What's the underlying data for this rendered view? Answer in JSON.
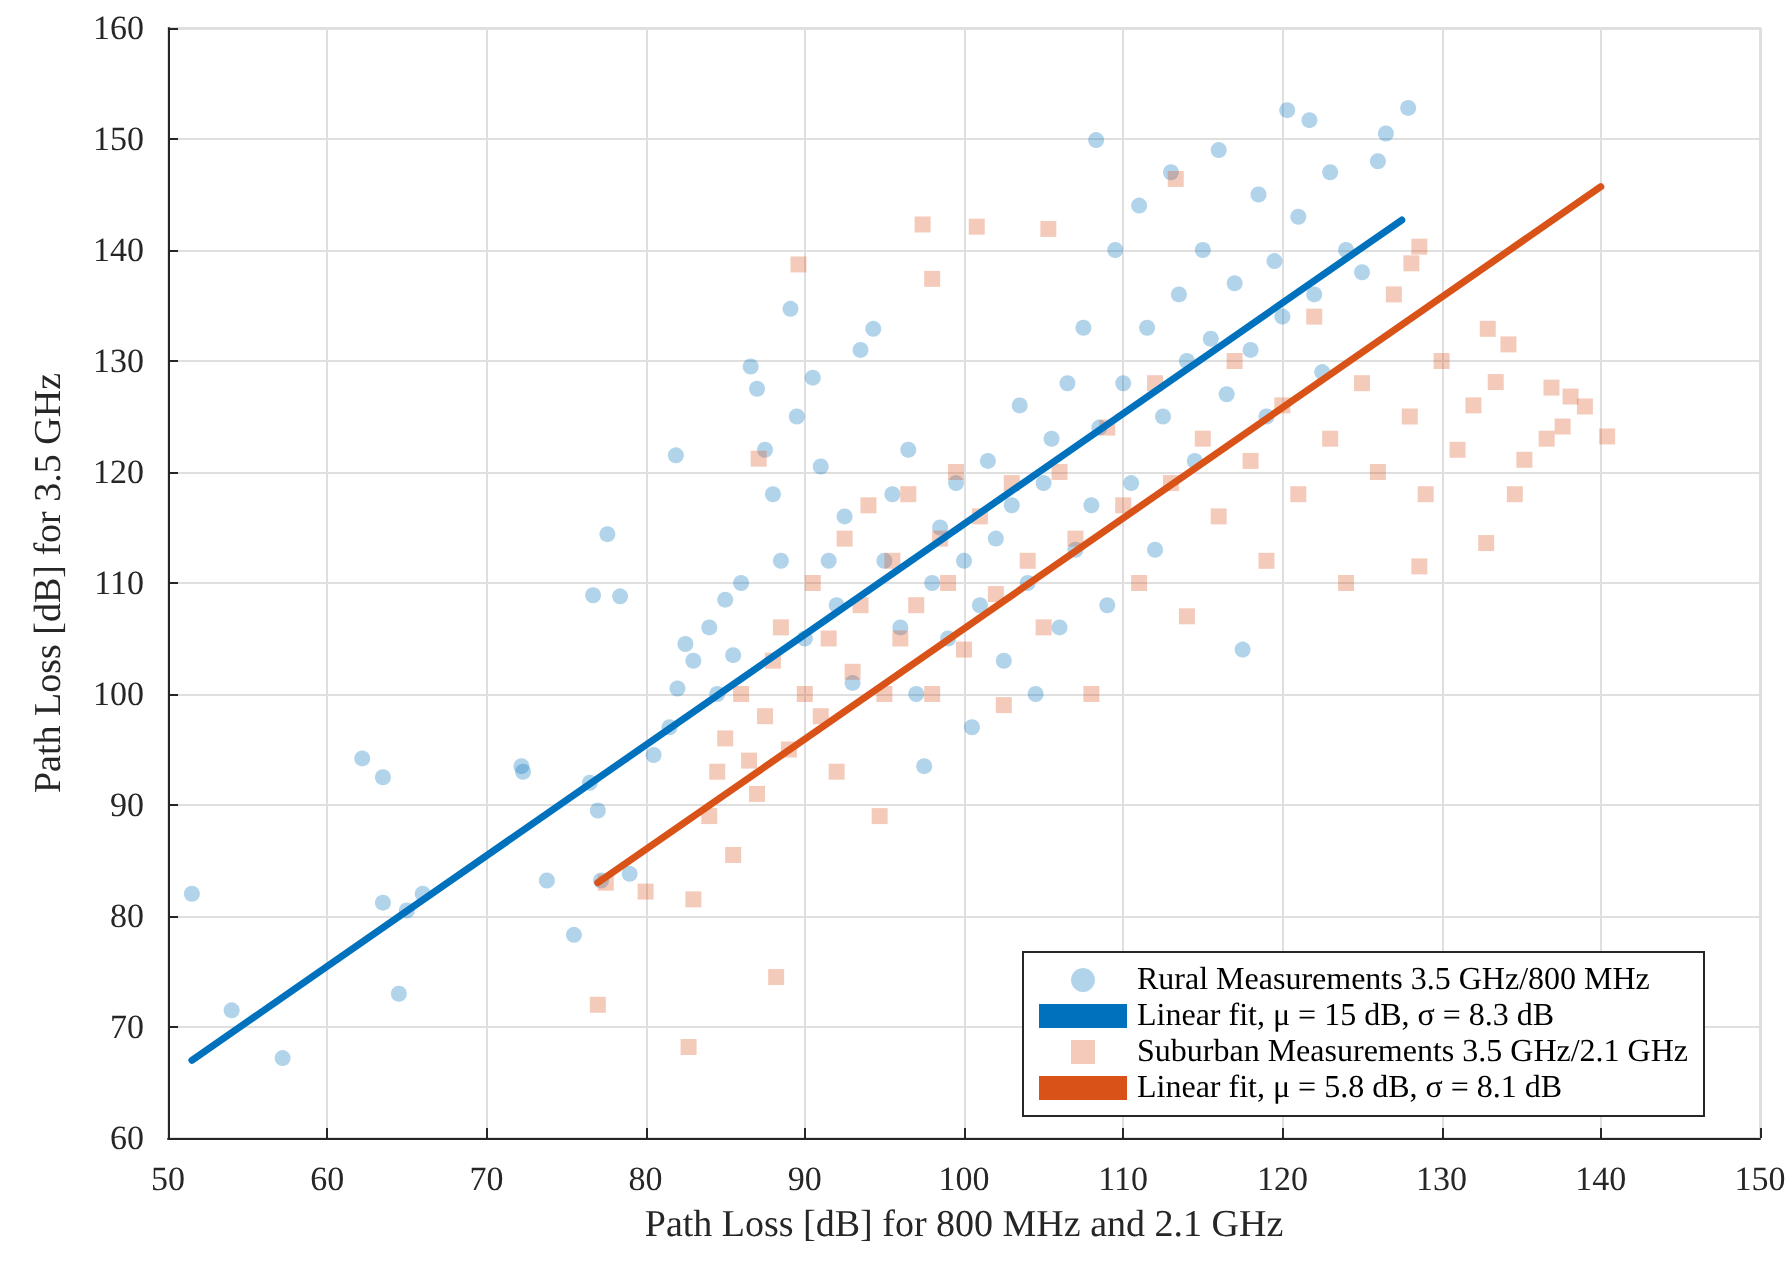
{
  "chart_data": {
    "type": "scatter",
    "xlabel": "Path Loss [dB] for 800 MHz and 2.1 GHz",
    "ylabel": "Path Loss [dB] for 3.5 GHz",
    "xlim": [
      50,
      150
    ],
    "xticks": [
      50,
      60,
      70,
      80,
      90,
      100,
      110,
      120,
      130,
      140,
      150
    ],
    "ylim": [
      60,
      160
    ],
    "yticks": [
      60,
      70,
      80,
      90,
      100,
      110,
      120,
      130,
      140,
      150,
      160
    ],
    "grid": true,
    "legend": "bottom right",
    "series": [
      {
        "name": "Rural Measurements 3.5 GHz/800 MHz",
        "marker": "circle",
        "color": "#0072bd",
        "x": [
          51.5,
          54,
          57.2,
          62.2,
          63.5,
          63.5,
          64.5,
          65,
          66,
          72.2,
          72.3,
          73.8,
          75.5,
          76.5,
          76.7,
          77,
          77.2,
          77.6,
          78.4,
          79,
          80.5,
          81.5,
          81.9,
          82,
          82.5,
          83,
          84,
          84.5,
          85,
          85.5,
          86,
          86.6,
          87,
          87.5,
          88,
          88.5,
          89.1,
          89.5,
          90,
          90.5,
          91,
          91.5,
          92,
          92.5,
          93,
          93.5,
          94.3,
          95,
          95.5,
          96,
          96.5,
          97,
          97.5,
          98,
          98.5,
          99,
          99.5,
          100,
          100.5,
          101,
          101.5,
          102,
          102.5,
          103,
          103.5,
          104,
          104.5,
          105,
          105.5,
          106,
          106.5,
          107,
          107.5,
          108,
          108.3,
          108.5,
          109,
          109.5,
          110,
          110.5,
          111,
          111.5,
          112,
          112.5,
          113,
          113.5,
          114,
          114.5,
          115,
          115.5,
          116,
          116.5,
          117,
          117.5,
          118,
          118.5,
          119,
          119.5,
          120,
          120.3,
          121,
          121.7,
          122,
          122.5,
          123,
          124,
          125,
          126,
          126.5,
          127.9
        ],
        "values": [
          82,
          71.5,
          67.2,
          94.2,
          92.5,
          81.2,
          73,
          80.5,
          82,
          93.5,
          93,
          83.2,
          78.3,
          92,
          108.9,
          89.5,
          83.2,
          114.4,
          108.8,
          83.8,
          94.5,
          97,
          121.5,
          100.5,
          104.5,
          103,
          106,
          100,
          108.5,
          103.5,
          110,
          129.5,
          127.5,
          122,
          118,
          112,
          134.7,
          125,
          105,
          128.5,
          120.5,
          112,
          108,
          116,
          101,
          131,
          132.9,
          112,
          118,
          106,
          122,
          100,
          93.5,
          110,
          115,
          105,
          119,
          112,
          97,
          108,
          121,
          114,
          103,
          117,
          126,
          110,
          100,
          119,
          123,
          106,
          128,
          113,
          133,
          117,
          149.9,
          124,
          108,
          140,
          128,
          119,
          144,
          133,
          113,
          125,
          147,
          136,
          130,
          121,
          140,
          132,
          149,
          127,
          137,
          104,
          131,
          145,
          125,
          139,
          134,
          152.6,
          143,
          151.7,
          136,
          129,
          147,
          140,
          138,
          148,
          150.5,
          152.8
        ]
      },
      {
        "name": "Linear fit, μ = 15 dB, σ = 8.3 dB",
        "type": "line",
        "marker": "none",
        "color": "#0072bd",
        "x": [
          51.5,
          127.5
        ],
        "values": [
          67,
          142.7
        ]
      },
      {
        "name": "Suburban Measurements 3.5 GHz/2.1 GHz",
        "marker": "square",
        "color": "#d95319",
        "x": [
          77,
          77.5,
          80,
          82.7,
          83,
          84,
          84.5,
          85,
          85.5,
          86,
          86.5,
          87,
          87.1,
          87.5,
          88,
          88.2,
          88.5,
          89,
          89.6,
          90,
          90.5,
          91,
          91.5,
          92,
          92.5,
          93,
          93.5,
          94,
          94.7,
          95,
          95.5,
          96,
          96.5,
          97,
          97.4,
          98,
          98,
          98.5,
          99,
          99.5,
          100,
          100.8,
          101,
          102,
          102.5,
          103,
          104,
          105,
          105.3,
          106,
          107,
          108,
          109,
          110,
          111,
          112,
          113,
          113.3,
          114,
          115,
          116,
          117,
          118,
          119,
          120,
          121,
          122,
          123,
          124,
          125,
          126,
          127,
          128,
          128.1,
          128.6,
          128.6,
          129,
          130,
          131,
          132,
          132.9,
          132.8,
          133.4,
          134.2,
          134.6,
          135.2,
          136.6,
          136.9,
          137.6,
          138.1,
          139,
          140.4
        ],
        "values": [
          72,
          83,
          82.2,
          68.2,
          81.5,
          89,
          93,
          96,
          85.5,
          100,
          94,
          91,
          121.2,
          98,
          103,
          74.5,
          106,
          95,
          138.7,
          100,
          110,
          98,
          105,
          93,
          114,
          102,
          108,
          117,
          89,
          100,
          112,
          105,
          118,
          108,
          142.3,
          137.4,
          100,
          114,
          110,
          120,
          104,
          142.1,
          116,
          109,
          99,
          119,
          112,
          106,
          141.9,
          120,
          114,
          100,
          124,
          117,
          110,
          128,
          119,
          146.4,
          107,
          123,
          116,
          130,
          121,
          112,
          126,
          118,
          134,
          123,
          110,
          128,
          120,
          136,
          125,
          138.8,
          140.3,
          111.5,
          118,
          130,
          122,
          126,
          132.9,
          113.6,
          128.1,
          131.5,
          118,
          121.1,
          123,
          127.6,
          124.1,
          126.8,
          125.9,
          123.2
        ]
      },
      {
        "name": "Linear fit, μ = 5.8 dB, σ = 8.1 dB",
        "type": "line",
        "marker": "none",
        "color": "#d95319",
        "x": [
          77,
          140
        ],
        "values": [
          83,
          145.7
        ]
      }
    ]
  }
}
